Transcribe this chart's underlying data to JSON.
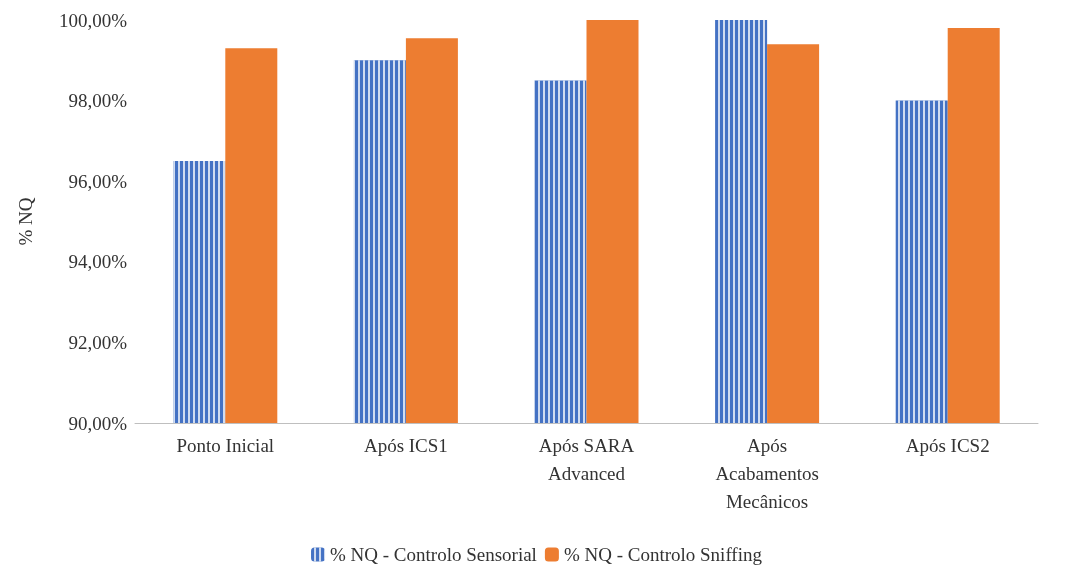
{
  "chart_data": {
    "type": "bar",
    "ylabel": "% NQ",
    "categories": [
      "Ponto Inicial",
      "Após ICS1",
      "Após SARA\nAdvanced",
      "Após\nAcabamentos\nMecânicos",
      "Após ICS2"
    ],
    "series": [
      {
        "name": "% NQ - Controlo Sensorial",
        "color": "#4472c4",
        "values": [
          96.5,
          99.0,
          98.5,
          100.0,
          98.0
        ]
      },
      {
        "name": "% NQ - Controlo Sniffing",
        "color": "#ed7d31",
        "values": [
          99.3,
          99.55,
          100.0,
          99.4,
          99.8
        ]
      }
    ],
    "ylim": [
      90,
      100
    ],
    "yticks": [
      {
        "value": 90,
        "label": "90,00%"
      },
      {
        "value": 92,
        "label": "92,00%"
      },
      {
        "value": 94,
        "label": "94,00%"
      },
      {
        "value": 96,
        "label": "96,00%"
      },
      {
        "value": 98,
        "label": "98,00%"
      },
      {
        "value": 100,
        "label": "100,00%"
      }
    ],
    "grid": false,
    "legend": "bottom"
  }
}
